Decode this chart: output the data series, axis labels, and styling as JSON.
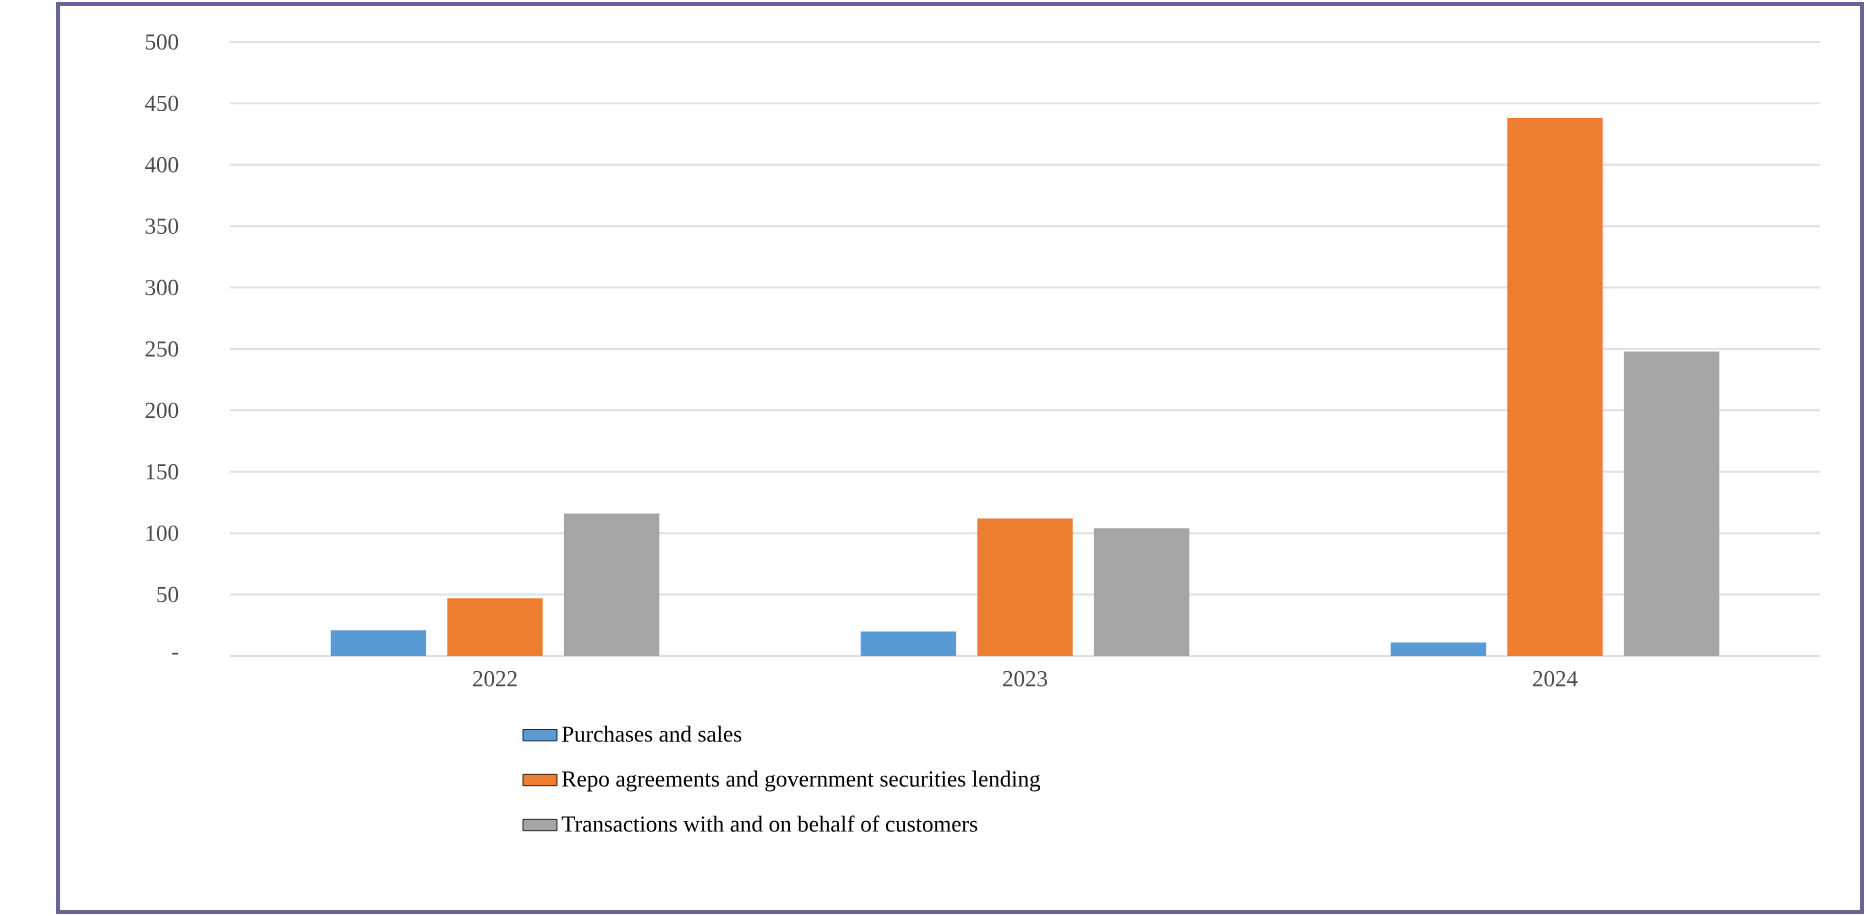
{
  "chart_data": {
    "type": "bar",
    "categories": [
      "2022",
      "2023",
      "2024"
    ],
    "series": [
      {
        "name": "Purchases and sales",
        "color": "#5b9bd5",
        "values": [
          21,
          20,
          11
        ]
      },
      {
        "name": "Repo agreements and government securities lending",
        "color": "#ed7d31",
        "values": [
          47,
          112,
          438
        ]
      },
      {
        "name": "Transactions with and on behalf of customers",
        "color": "#a5a5a5",
        "values": [
          116,
          104,
          248
        ]
      }
    ],
    "ylim": [
      0,
      500
    ],
    "yticks": [
      {
        "value": 0,
        "label": "-"
      },
      50,
      100,
      150,
      200,
      250,
      300,
      350,
      400,
      450,
      500
    ],
    "grid": "y",
    "legend": "bottom"
  }
}
